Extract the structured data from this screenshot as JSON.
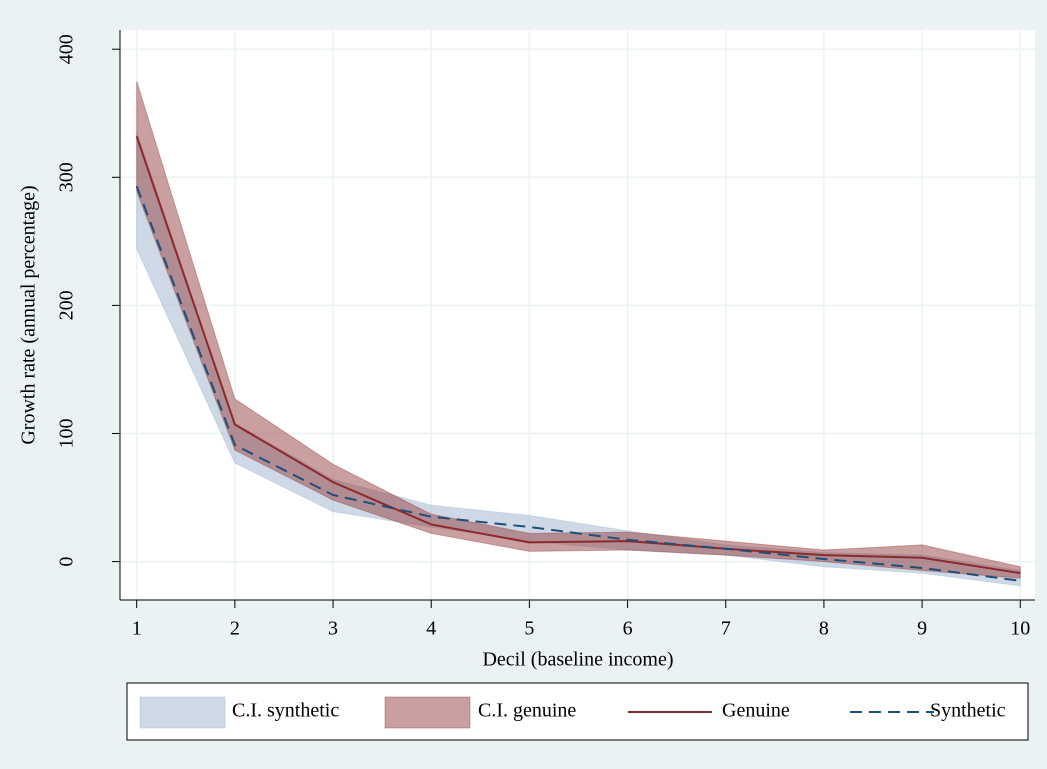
{
  "chart_data": {
    "type": "line",
    "x_label": "Decil (baseline income)",
    "y_label": "Growth rate (annual percentage)",
    "x": [
      1,
      2,
      3,
      4,
      5,
      6,
      7,
      8,
      9,
      10
    ],
    "xlim": [
      0.83,
      10.15
    ],
    "xticks": [
      1,
      2,
      3,
      4,
      5,
      6,
      7,
      8,
      9,
      10
    ],
    "ylim": [
      -30,
      415
    ],
    "yticks": [
      0,
      100,
      200,
      300,
      400
    ],
    "grid": true,
    "legend": "bottom",
    "series": [
      {
        "name": "C.I. synthetic",
        "color": "#9db4cc",
        "lower": [
          244,
          77,
          39,
          27,
          16,
          9,
          5,
          -4,
          -9,
          -19
        ],
        "upper": [
          335,
          108,
          64,
          44,
          36,
          24,
          13,
          7,
          5,
          -7
        ]
      },
      {
        "name": "C.I. genuine",
        "color": "#93403f",
        "lower": [
          289,
          87,
          48,
          22,
          8,
          9,
          5,
          0,
          -7,
          -13
        ],
        "upper": [
          375,
          127,
          76,
          37,
          22,
          23,
          16,
          9,
          13,
          -4
        ]
      },
      {
        "name": "Genuine",
        "color": "#8b2a2e",
        "dashed": false,
        "values": [
          332,
          107,
          62,
          29,
          15,
          16,
          10,
          5,
          3,
          -9
        ]
      },
      {
        "name": "Synthetic",
        "color": "#1f4e79",
        "dashed": true,
        "values": [
          293,
          91,
          52,
          35,
          27,
          17,
          10,
          2,
          -5,
          -15
        ]
      }
    ]
  }
}
